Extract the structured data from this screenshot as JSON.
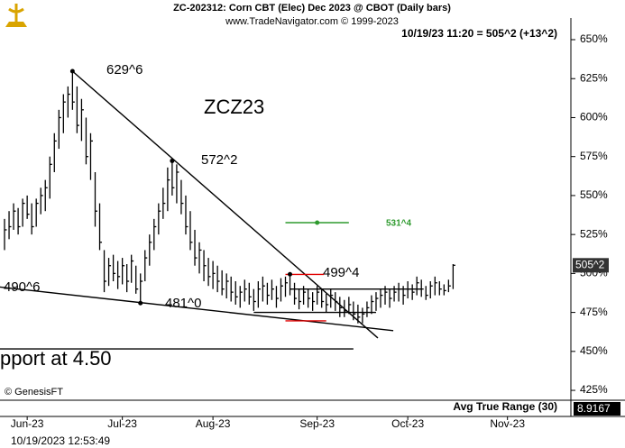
{
  "chart_data": {
    "type": "ohlc",
    "title": "ZC-202312:  Corn CBT (Elec) Dec 2023 @ CBOT  (Daily bars)",
    "subtitle": "www.TradeNavigator.com © 1999-2023",
    "quote": "10/19/23 11:20 = 505^2 (+13^2)",
    "symbol": "ZCZ23",
    "copyright": "© GenesisFT",
    "indicator": "Avg True Range (30)",
    "indicator_value": "8.9167",
    "timestamp": "10/19/2023 12:53:49",
    "last_price": 505.25,
    "last_price_label": "505^2",
    "color": "#000000",
    "ylim": [
      420,
      662.5
    ],
    "yticks": [
      {
        "value": 425,
        "label": "425%"
      },
      {
        "value": 450,
        "label": "450%"
      },
      {
        "value": 475,
        "label": "475%"
      },
      {
        "value": 500,
        "label": "500%"
      },
      {
        "value": 525,
        "label": "525%"
      },
      {
        "value": 550,
        "label": "550%"
      },
      {
        "value": 575,
        "label": "575%"
      },
      {
        "value": 600,
        "label": "600%"
      },
      {
        "value": 625,
        "label": "625%"
      },
      {
        "value": 650,
        "label": "650%"
      }
    ],
    "xlim": [
      -6,
      120
    ],
    "xticks": [
      {
        "value": 0,
        "label": "Jun-23"
      },
      {
        "value": 21,
        "label": "Jul-23"
      },
      {
        "value": 41,
        "label": "Aug-23"
      },
      {
        "value": 64,
        "label": "Sep-23"
      },
      {
        "value": 84,
        "label": "Oct-23"
      },
      {
        "value": 106,
        "label": "Nov-23"
      }
    ],
    "x": [
      -5,
      -4,
      -3,
      -2,
      -1,
      0,
      1,
      2,
      3,
      4,
      5,
      6,
      7,
      8,
      9,
      10,
      11,
      12,
      13,
      14,
      15,
      16,
      17,
      18,
      19,
      20,
      21,
      22,
      23,
      24,
      25,
      26,
      27,
      28,
      29,
      30,
      31,
      32,
      33,
      34,
      35,
      36,
      37,
      38,
      39,
      40,
      41,
      42,
      43,
      44,
      45,
      46,
      47,
      48,
      49,
      50,
      51,
      52,
      53,
      54,
      55,
      56,
      57,
      58,
      59,
      60,
      61,
      62,
      63,
      64,
      65,
      66,
      67,
      68,
      69,
      70,
      71,
      72,
      73,
      74,
      75,
      76,
      77,
      78,
      79,
      80,
      81,
      82,
      83,
      84,
      85,
      86,
      87,
      88,
      89,
      90,
      91,
      92,
      93,
      94
    ],
    "high": [
      535,
      540,
      545,
      542,
      548,
      550,
      545,
      548,
      555,
      560,
      575,
      590,
      605,
      615,
      620,
      629.75,
      620,
      612,
      600,
      590,
      565,
      545,
      515,
      510,
      512,
      508,
      510,
      506,
      512,
      505,
      500,
      515,
      525,
      535,
      545,
      555,
      568,
      572.25,
      570,
      560,
      550,
      540,
      528,
      520,
      515,
      510,
      508,
      505,
      502,
      500,
      498,
      495,
      492,
      496,
      494,
      490,
      495,
      498,
      494,
      496,
      492,
      497,
      498,
      499.5,
      494,
      490,
      492,
      490,
      488,
      492,
      490,
      487,
      490,
      488,
      485,
      483,
      485,
      482,
      480,
      478,
      482,
      486,
      488,
      490,
      492,
      490,
      492,
      494,
      492,
      495,
      493,
      498,
      496,
      492,
      495,
      498,
      495,
      493,
      496,
      506
    ],
    "low": [
      515,
      522,
      528,
      525,
      530,
      535,
      525,
      530,
      538,
      540,
      548,
      565,
      580,
      590,
      600,
      605,
      590,
      585,
      570,
      560,
      530,
      515,
      488,
      492,
      495,
      490,
      493,
      488,
      494,
      487,
      481,
      495,
      505,
      515,
      525,
      535,
      540,
      550,
      545,
      538,
      525,
      515,
      505,
      500,
      495,
      492,
      490,
      488,
      486,
      484,
      482,
      480,
      478,
      482,
      480,
      476,
      478,
      482,
      480,
      483,
      478,
      482,
      485,
      486,
      480,
      477,
      480,
      478,
      476,
      480,
      478,
      475,
      478,
      476,
      472,
      472,
      474,
      470,
      468,
      468,
      472,
      474,
      476,
      478,
      480,
      478,
      482,
      482,
      480,
      484,
      483,
      486,
      485,
      483,
      484,
      486,
      486,
      486,
      488,
      490
    ],
    "close": [
      528,
      530,
      540,
      530,
      545,
      538,
      530,
      545,
      550,
      555,
      570,
      585,
      600,
      610,
      615,
      610,
      595,
      605,
      575,
      585,
      540,
      520,
      495,
      505,
      500,
      498,
      505,
      495,
      508,
      490,
      495,
      510,
      520,
      530,
      540,
      545,
      560,
      555,
      565,
      545,
      530,
      520,
      510,
      515,
      505,
      498,
      500,
      495,
      490,
      495,
      488,
      485,
      488,
      490,
      485,
      482,
      490,
      492,
      486,
      490,
      484,
      492,
      494,
      490,
      484,
      482,
      488,
      484,
      482,
      488,
      482,
      480,
      486,
      482,
      478,
      476,
      480,
      474,
      472,
      474,
      478,
      482,
      484,
      486,
      488,
      484,
      488,
      490,
      486,
      490,
      488,
      494,
      490,
      486,
      492,
      494,
      490,
      489,
      492,
      505.25
    ],
    "trendlines": [
      {
        "color": "#000000",
        "x": [
          10,
          77.4
        ],
        "y": [
          629.75,
          458.6
        ]
      },
      {
        "color": "#000000",
        "x": [
          -6.6,
          80.8
        ],
        "y": [
          491.5,
          463.3
        ]
      },
      {
        "color": "#000000",
        "x": [
          -6.6,
          72
        ],
        "y": [
          451.6,
          451.6
        ]
      },
      {
        "color": "#000000",
        "x": [
          58,
          87
        ],
        "y": [
          490,
          490
        ]
      },
      {
        "color": "#000000",
        "x": [
          50,
          77
        ],
        "y": [
          475,
          475
        ]
      },
      {
        "color": "#2e9a2e",
        "x": [
          57,
          71
        ],
        "y": [
          532.6,
          532.6
        ]
      },
      {
        "color": "#e00000",
        "x": [
          57,
          65.5
        ],
        "y": [
          499.4,
          499.4
        ]
      },
      {
        "color": "#e00000",
        "x": [
          57,
          66
        ],
        "y": [
          469.6,
          469.6
        ]
      }
    ],
    "annotations": [
      "629^6",
      "572^2",
      "499^4",
      "481^0",
      "490^6",
      "531^4",
      "pport at 4.50"
    ]
  }
}
